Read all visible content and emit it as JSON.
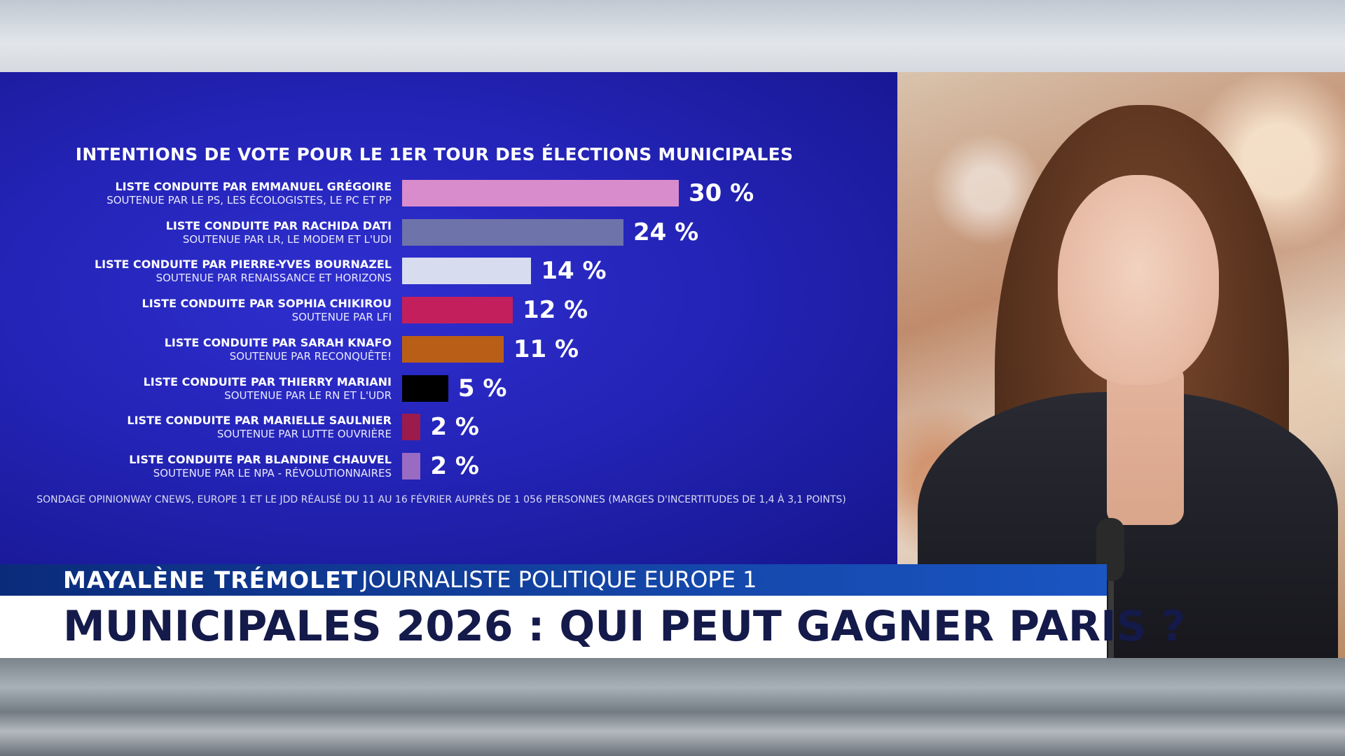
{
  "chart_data": {
    "type": "bar",
    "title": "INTENTIONS DE VOTE POUR LE 1ER TOUR DES ÉLECTIONS MUNICIPALES",
    "xlabel": "",
    "ylabel": "",
    "unit": "%",
    "orientation": "horizontal",
    "categories": [
      "LISTE CONDUITE PAR EMMANUEL GRÉGOIRE",
      "LISTE CONDUITE PAR RACHIDA DATI",
      "LISTE CONDUITE PAR PIERRE-YVES BOURNAZEL",
      "LISTE CONDUITE PAR SOPHIA CHIKIROU",
      "LISTE CONDUITE PAR SARAH KNAFO",
      "LISTE CONDUITE PAR THIERRY MARIANI",
      "LISTE CONDUITE PAR MARIELLE SAULNIER",
      "LISTE CONDUITE PAR BLANDINE CHAUVEL"
    ],
    "subtitles": [
      "SOUTENUE PAR LE PS, LES ÉCOLOGISTES, LE PC ET PP",
      "SOUTENUE PAR LR, LE MODEM ET L'UDI",
      "SOUTENUE PAR RENAISSANCE ET HORIZONS",
      "SOUTENUE PAR LFI",
      "SOUTENUE PAR RECONQUÊTE!",
      "SOUTENUE PAR LE RN ET L'UDR",
      "SOUTENUE PAR LUTTE OUVRIÈRE",
      "SOUTENUE PAR LE NPA - RÉVOLUTIONNAIRES"
    ],
    "values": [
      30,
      24,
      14,
      12,
      11,
      5,
      2,
      2
    ],
    "value_labels": [
      "30 %",
      "24 %",
      "14 %",
      "12 %",
      "11 %",
      "5 %",
      "2 %",
      "2 %"
    ],
    "colors": [
      "#d98ccc",
      "#6e73aa",
      "#d7dcef",
      "#c31f5c",
      "#b95e17",
      "#000000",
      "#9b1b4c",
      "#9a6bc3"
    ],
    "xlim": [
      0,
      30
    ],
    "grid": false,
    "source": "SONDAGE OPINIONWAY CNEWS, EUROPE 1 ET LE JDD RÉALISÉ DU 11 AU 16 FÉVRIER AUPRÈS DE 1 056 PERSONNES (MARGES D'INCERTITUDES DE 1,4 À 3,1 POINTS)"
  },
  "lower_third": {
    "speaker_name": "MAYALÈNE TRÉMOLET",
    "speaker_role": "JOURNALISTE POLITIQUE EUROPE 1",
    "headline": "MUNICIPALES 2026 : QUI PEUT GAGNER PARIS ?"
  }
}
